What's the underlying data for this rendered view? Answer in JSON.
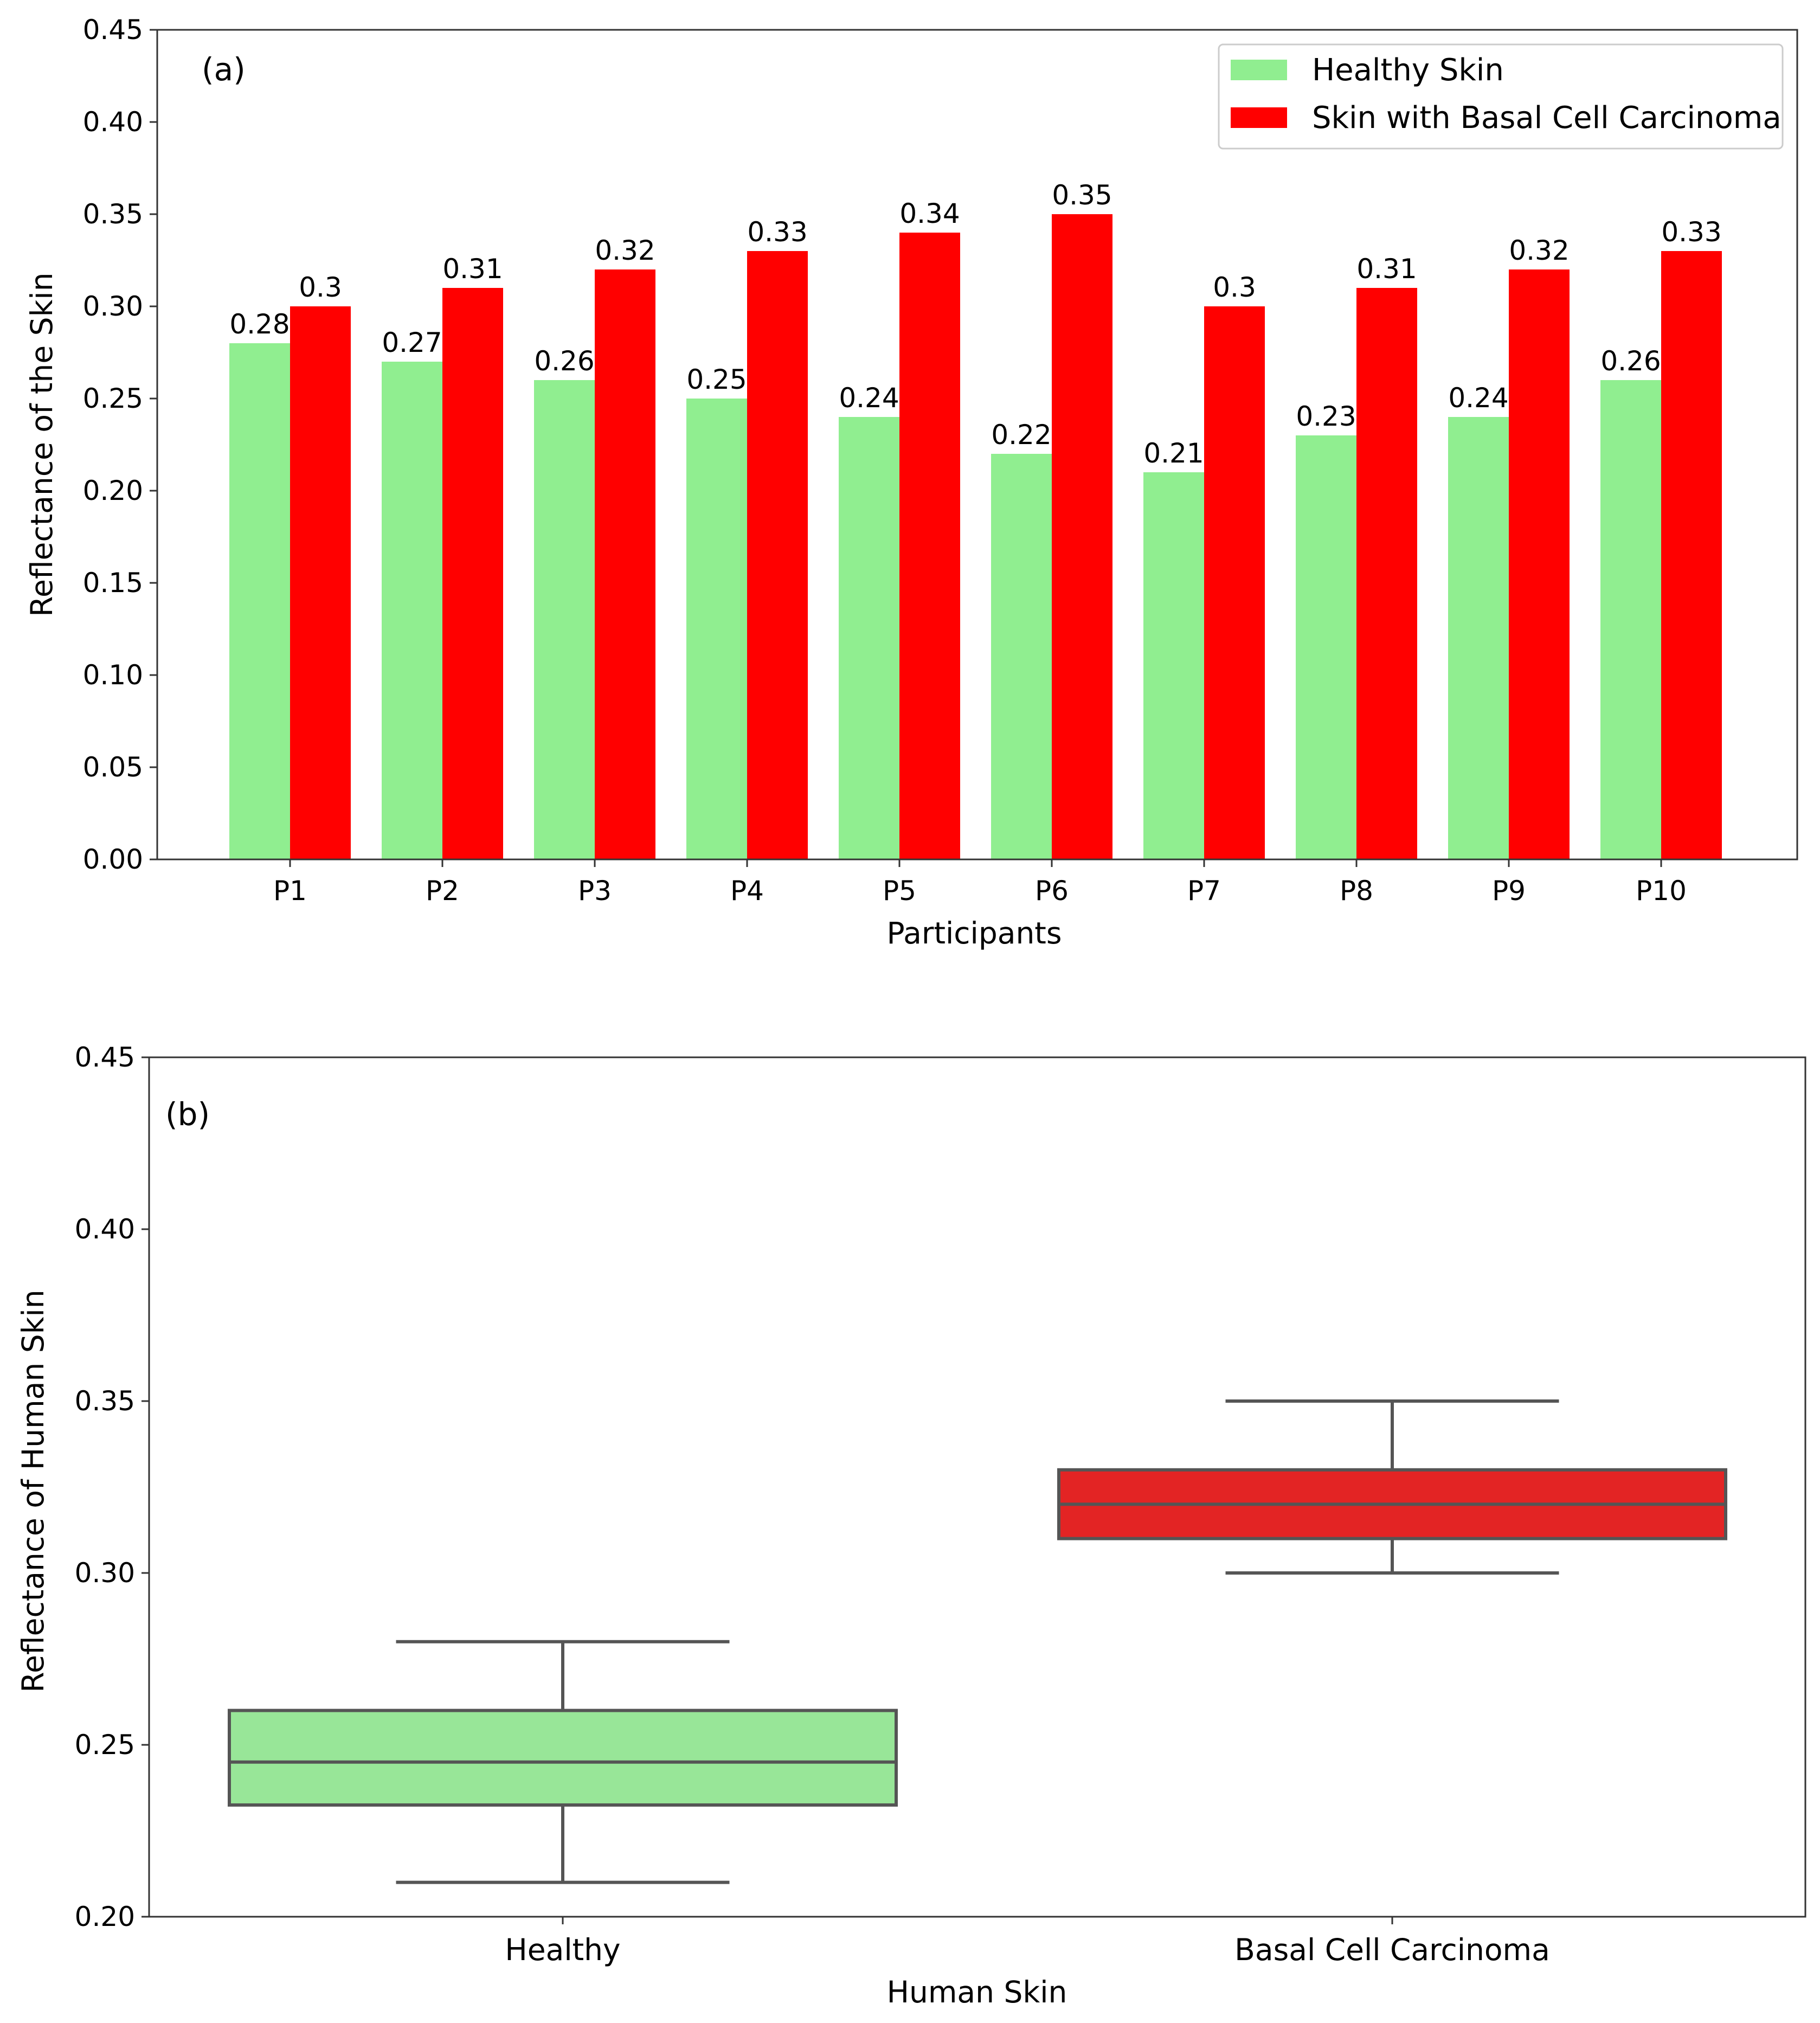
{
  "chart_data": [
    {
      "type": "bar",
      "panel_label": "(a)",
      "categories": [
        "P1",
        "P2",
        "P3",
        "P4",
        "P5",
        "P6",
        "P7",
        "P8",
        "P9",
        "P10"
      ],
      "series": [
        {
          "name": "Healthy Skin",
          "color": "#90ee90",
          "values": [
            0.28,
            0.27,
            0.26,
            0.25,
            0.24,
            0.22,
            0.21,
            0.23,
            0.24,
            0.26
          ],
          "labels": [
            "0.28",
            "0.27",
            "0.26",
            "0.25",
            "0.24",
            "0.22",
            "0.21",
            "0.23",
            "0.24",
            "0.26"
          ]
        },
        {
          "name": "Skin with Basal Cell Carcinoma",
          "color": "#ff0000",
          "values": [
            0.3,
            0.31,
            0.32,
            0.33,
            0.34,
            0.35,
            0.3,
            0.31,
            0.32,
            0.33
          ],
          "labels": [
            "0.3",
            "0.31",
            "0.32",
            "0.33",
            "0.34",
            "0.35",
            "0.3",
            "0.31",
            "0.32",
            "0.33"
          ]
        }
      ],
      "xlabel": "Participants",
      "ylabel": "Reflectance of the Skin",
      "ylim": [
        0,
        0.45
      ],
      "yticks": [
        "0.00",
        "0.05",
        "0.10",
        "0.15",
        "0.20",
        "0.25",
        "0.30",
        "0.35",
        "0.40",
        "0.45"
      ],
      "legend_position": "top-right",
      "grid": false
    },
    {
      "type": "box",
      "panel_label": "(b)",
      "categories": [
        "Healthy",
        "Basal Cell Carcinoma"
      ],
      "boxes": [
        {
          "category": "Healthy",
          "min": 0.21,
          "q1": 0.2325,
          "median": 0.245,
          "q3": 0.26,
          "max": 0.28,
          "color": "#98e698"
        },
        {
          "category": "Basal Cell Carcinoma",
          "min": 0.3,
          "q1": 0.31,
          "median": 0.32,
          "q3": 0.33,
          "max": 0.35,
          "color": "#e32424"
        }
      ],
      "xlabel": "Human Skin",
      "ylabel": "Reflectance of Human Skin",
      "ylim": [
        0.2,
        0.45
      ],
      "yticks": [
        "0.20",
        "0.25",
        "0.30",
        "0.35",
        "0.40",
        "0.45"
      ],
      "grid": false
    }
  ]
}
